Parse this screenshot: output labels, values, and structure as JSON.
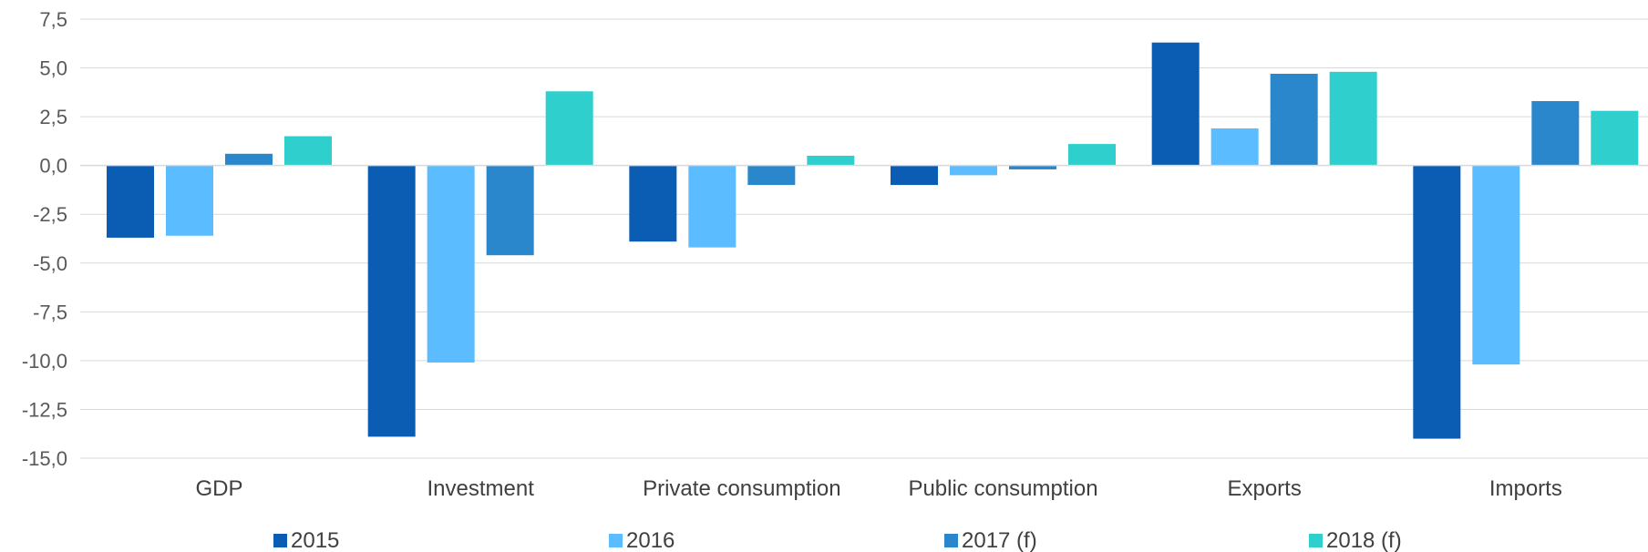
{
  "chart_data": {
    "type": "bar",
    "title": "",
    "xlabel": "",
    "ylabel": "",
    "categories": [
      "GDP",
      "Investment",
      "Private consumption",
      "Public consumption",
      "Exports",
      "Imports"
    ],
    "series": [
      {
        "name": "2015",
        "color": "#0b5db3",
        "values": [
          -3.7,
          -13.9,
          -3.9,
          -1.0,
          6.3,
          -14.0
        ]
      },
      {
        "name": "2016",
        "color": "#5bbcff",
        "values": [
          -3.6,
          -10.1,
          -4.2,
          -0.5,
          1.9,
          -10.2
        ]
      },
      {
        "name": "2017 (f)",
        "color": "#2b87cb",
        "values": [
          0.6,
          -4.6,
          -1.0,
          -0.2,
          4.7,
          3.3
        ]
      },
      {
        "name": "2018 (f)",
        "color": "#2ecfcd",
        "values": [
          1.5,
          3.8,
          0.5,
          1.1,
          4.8,
          2.8
        ]
      }
    ],
    "ylim": [
      -15,
      7.5
    ],
    "y_ticks": [
      "7,5",
      "5,0",
      "2,5",
      "0,0",
      "-2,5",
      "-5,0",
      "-7,5",
      "-10,0",
      "-12,5",
      "-15,0"
    ],
    "y_tick_values": [
      7.5,
      5,
      2.5,
      0,
      -2.5,
      -5,
      -7.5,
      -10,
      -12.5,
      -15
    ],
    "grid": true,
    "legend_position": "bottom"
  }
}
